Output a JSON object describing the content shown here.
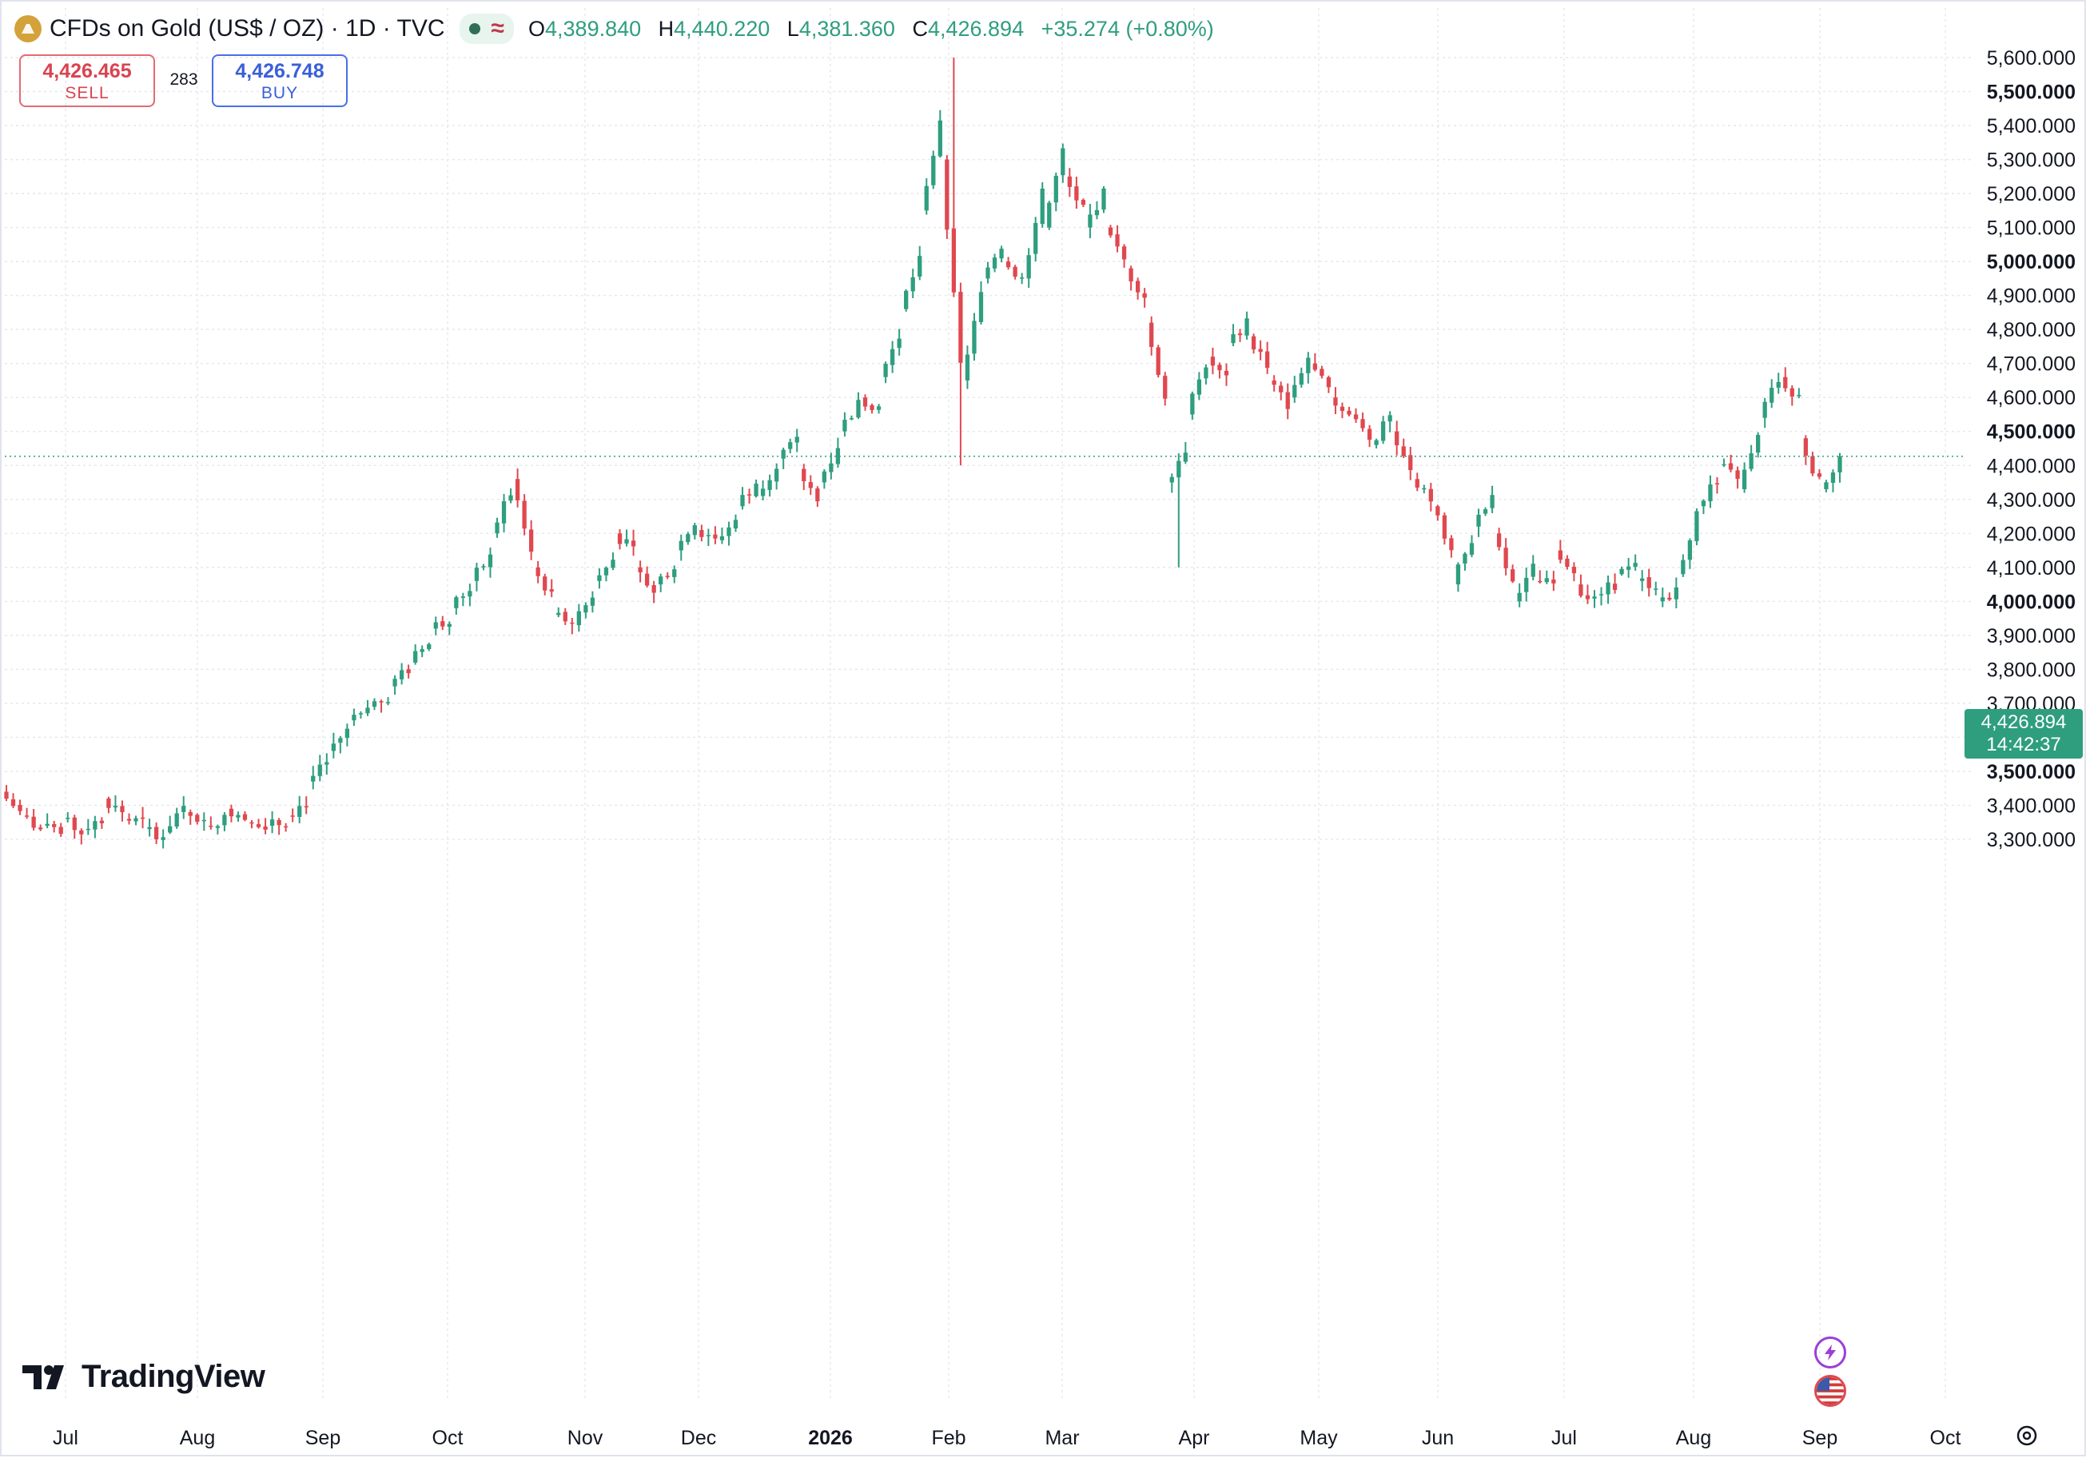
{
  "header": {
    "title": "CFDs on Gold (US$ / OZ) · 1D · TVC",
    "ohlc": {
      "o_label": "O",
      "o": "4,389.840",
      "h_label": "H",
      "h": "4,440.220",
      "l_label": "L",
      "l": "4,381.360",
      "c_label": "C",
      "c": "4,426.894",
      "change": "+35.274 (+0.80%)"
    }
  },
  "trade": {
    "sell_price": "4,426.465",
    "sell_label": "SELL",
    "spread": "283",
    "buy_price": "4,426.748",
    "buy_label": "BUY"
  },
  "price_label": {
    "price": "4,426.894",
    "countdown": "14:42:37"
  },
  "logo": {
    "text": "TradingView"
  },
  "colors": {
    "up": "#2e9e7f",
    "down": "#e0484f",
    "price_line": "#2e9e7f",
    "grid": "#e6e8ee",
    "text": "#131722"
  },
  "icons": [
    "gold-coin-icon",
    "lightning-icon",
    "us-flag-icon",
    "axis-settings-icon",
    "tradingview-logo-icon"
  ],
  "chart_data": {
    "type": "candlestick",
    "symbol": "CFDs on Gold (US$ / OZ)",
    "interval": "1D",
    "y_axis": {
      "range": [
        3260,
        5640
      ],
      "ticks": [
        3300,
        3400,
        3500,
        3600,
        3700,
        3800,
        3900,
        4000,
        4100,
        4200,
        4300,
        4400,
        4500,
        4600,
        4700,
        4800,
        4900,
        5000,
        5100,
        5200,
        5300,
        5400,
        5500,
        5600
      ],
      "tick_labels": [
        "3,300.000",
        "3,400.000",
        "3,500.000",
        "3,600.000",
        "3,700.000",
        "3,800.000",
        "3,900.000",
        "4,000.000",
        "4,100.000",
        "4,200.000",
        "4,300.000",
        "4,400.000",
        "4,500.000",
        "4,600.000",
        "4,700.000",
        "4,800.000",
        "4,900.000",
        "5,000.000",
        "5,100.000",
        "5,200.000",
        "5,300.000",
        "5,400.000",
        "5,500.000",
        "5,600.000"
      ],
      "bold_ticks": [
        3500,
        4000,
        4500,
        5000,
        5500
      ]
    },
    "x_axis": {
      "labels": [
        "Jul",
        "Aug",
        "Sep",
        "Oct",
        "Nov",
        "Dec",
        "2026",
        "Feb",
        "Mar",
        "Apr",
        "May",
        "Jun",
        "Jul",
        "Aug",
        "Sep",
        "Oct"
      ],
      "bold_labels": [
        "2026"
      ]
    },
    "last_price": 4426.894,
    "anchors": [
      [
        3440,
        3380
      ],
      [
        3370,
        3330
      ],
      [
        3340,
        3310
      ],
      [
        3360,
        3320
      ],
      [
        3330,
        3360
      ],
      [
        3420,
        3380
      ],
      [
        3360,
        3350
      ],
      [
        3330,
        3310
      ],
      [
        3320,
        3400
      ],
      [
        3380,
        3350
      ],
      [
        3340,
        3360
      ],
      [
        3390,
        3370
      ],
      [
        3350,
        3330
      ],
      [
        3340,
        3350
      ],
      [
        3370,
        3410
      ],
      [
        3470,
        3520
      ],
      [
        3560,
        3620
      ],
      [
        3650,
        3670
      ],
      [
        3690,
        3720
      ],
      [
        3750,
        3800
      ],
      [
        3820,
        3880
      ],
      [
        3920,
        3950
      ],
      [
        3980,
        4040
      ],
      [
        4060,
        4130
      ],
      [
        4200,
        4320
      ],
      [
        4360,
        4150
      ],
      [
        4100,
        4020
      ],
      [
        3960,
        3940
      ],
      [
        3930,
        4020
      ],
      [
        4060,
        4140
      ],
      [
        4200,
        4150
      ],
      [
        4100,
        4030
      ],
      [
        4050,
        4110
      ],
      [
        4150,
        4230
      ],
      [
        4210,
        4190
      ],
      [
        4180,
        4240
      ],
      [
        4280,
        4350
      ],
      [
        4310,
        4380
      ],
      [
        4420,
        4470
      ],
      [
        4390,
        4290
      ],
      [
        4350,
        4460
      ],
      [
        4500,
        4580
      ],
      [
        4600,
        4570
      ],
      [
        4660,
        4780
      ],
      [
        4860,
        5000
      ],
      [
        5150,
        5400
      ],
      [
        5300,
        4700
      ],
      [
        4650,
        4900
      ],
      [
        4950,
        5050
      ],
      [
        5000,
        4950
      ],
      [
        4950,
        5200
      ],
      [
        5100,
        5320
      ],
      [
        5250,
        5150
      ],
      [
        5100,
        5200
      ],
      [
        5100,
        5000
      ],
      [
        4980,
        4900
      ],
      [
        4820,
        4600
      ],
      [
        4350,
        4450
      ],
      [
        4550,
        4700
      ],
      [
        4720,
        4650
      ],
      [
        4760,
        4820
      ],
      [
        4780,
        4700
      ],
      [
        4650,
        4580
      ],
      [
        4600,
        4720
      ],
      [
        4700,
        4620
      ],
      [
        4600,
        4550
      ],
      [
        4550,
        4480
      ],
      [
        4460,
        4540
      ],
      [
        4500,
        4380
      ],
      [
        4360,
        4300
      ],
      [
        4280,
        4150
      ],
      [
        4050,
        4180
      ],
      [
        4220,
        4300
      ],
      [
        4200,
        4050
      ],
      [
        4000,
        4100
      ],
      [
        4060,
        4050
      ],
      [
        4150,
        4100
      ],
      [
        4050,
        4000
      ],
      [
        4020,
        4050
      ],
      [
        4080,
        4100
      ],
      [
        4060,
        4050
      ],
      [
        4000,
        4030
      ],
      [
        4080,
        4250
      ],
      [
        4280,
        4360
      ],
      [
        4400,
        4360
      ],
      [
        4330,
        4480
      ],
      [
        4540,
        4650
      ],
      [
        4660,
        4600
      ],
      [
        4480,
        4350
      ],
      [
        4330,
        4427
      ]
    ],
    "notable_extremes": {
      "high": 5600,
      "high_month": "late Jan 2026",
      "low": 3290,
      "low_month": "Jul"
    }
  }
}
